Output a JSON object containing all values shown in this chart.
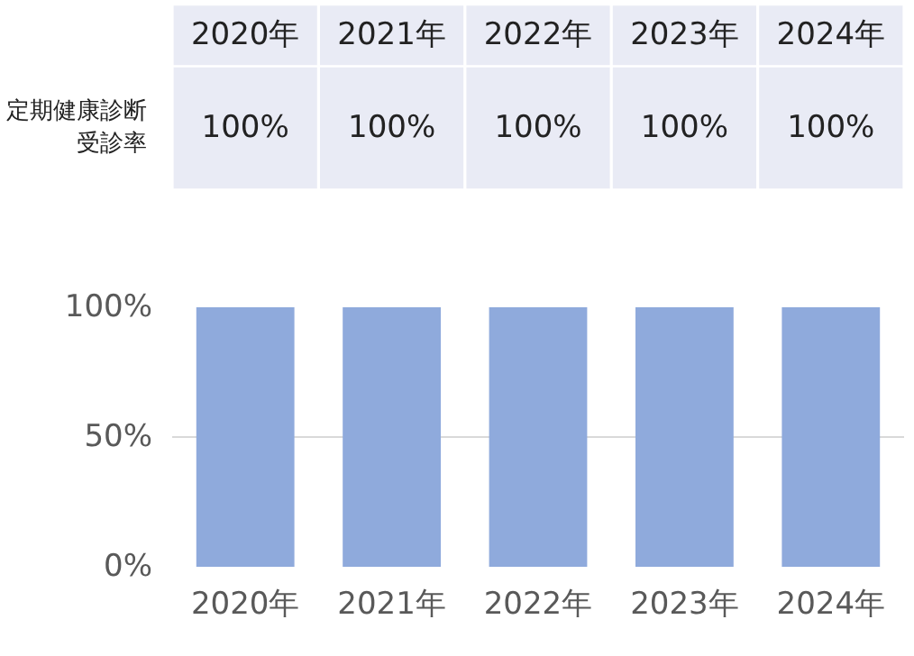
{
  "chart_data": {
    "type": "bar",
    "categories": [
      "2020年",
      "2021年",
      "2022年",
      "2023年",
      "2024年"
    ],
    "series": [
      {
        "name": "定期健康診断受診率",
        "color": "#8faadc",
        "values": [
          100,
          100,
          100,
          100,
          100
        ]
      }
    ],
    "value_labels": [
      "100%",
      "100%",
      "100%",
      "100%",
      "100%"
    ],
    "ylim": [
      0,
      100
    ],
    "yticks": [
      {
        "value": 0,
        "label": "0%"
      },
      {
        "value": 50,
        "label": "50%"
      },
      {
        "value": 100,
        "label": "100%"
      }
    ],
    "grid": "y",
    "legend": false
  }
}
